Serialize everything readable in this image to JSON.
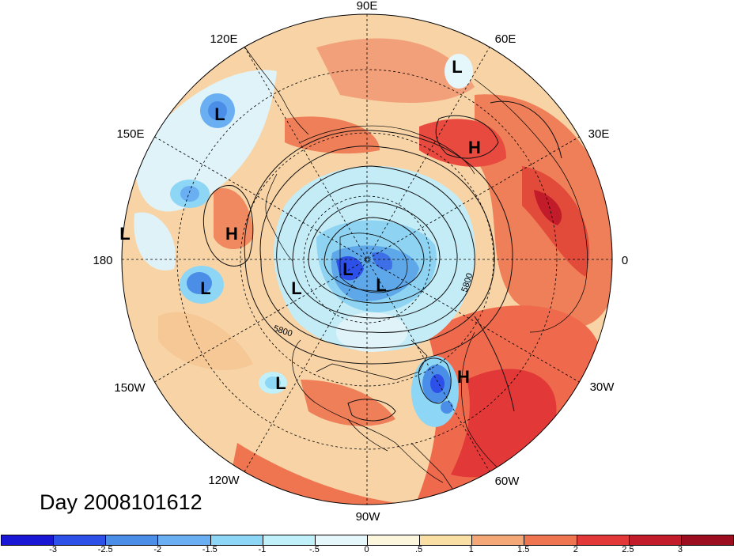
{
  "title": "Day 2008101612",
  "longitude_labels": [
    "90E",
    "60E",
    "30E",
    "0",
    "30W",
    "60W",
    "90W",
    "120W",
    "150W",
    "180",
    "150E",
    "120E"
  ],
  "pressure_systems": [
    {
      "type": "L"
    },
    {
      "type": "L"
    },
    {
      "type": "H"
    },
    {
      "type": "H"
    },
    {
      "type": "L"
    },
    {
      "type": "L"
    },
    {
      "type": "L"
    },
    {
      "type": "L"
    },
    {
      "type": "L"
    },
    {
      "type": "H"
    },
    {
      "type": "L"
    }
  ],
  "contour_labels": [
    "5800",
    "5800"
  ],
  "colorbar": {
    "ticks": [
      "-3",
      "-2.5",
      "-2",
      "-1.5",
      "-1",
      "-.5",
      "0",
      ".5",
      "1",
      "1.5",
      "2",
      "2.5",
      "3"
    ],
    "colors": [
      "#1a17d4",
      "#2c50e8",
      "#4a8ee8",
      "#6aaff2",
      "#8ed6f5",
      "#c0f0f9",
      "#e6f7fb",
      "#fcf6dc",
      "#f9dfa4",
      "#f5a877",
      "#ef7550",
      "#e23838",
      "#c21b2a",
      "#9c0d1f"
    ]
  }
}
